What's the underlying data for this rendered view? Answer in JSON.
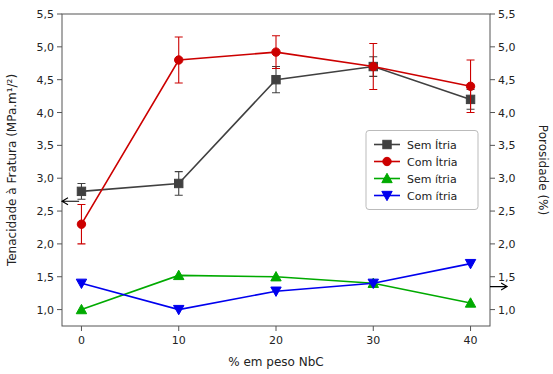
{
  "chart_data": {
    "type": "line",
    "xlabel": "% em peso NbC",
    "ylabel": "Tenacidade à Fratura (MPa.m¹/²)",
    "y2label": "Porosidade (%)",
    "x": [
      0,
      10,
      20,
      30,
      40
    ],
    "xlim": [
      -2,
      42
    ],
    "xticks": [
      0,
      10,
      20,
      30,
      40
    ],
    "ylim": [
      0.75,
      5.5
    ],
    "yticks": [
      {
        "value": 1.0,
        "label": "1,0"
      },
      {
        "value": 1.5,
        "label": "1,5"
      },
      {
        "value": 2.0,
        "label": "2,0"
      },
      {
        "value": 2.5,
        "label": "2,5"
      },
      {
        "value": 3.0,
        "label": "3,0"
      },
      {
        "value": 3.5,
        "label": "3,5"
      },
      {
        "value": 4.0,
        "label": "4,0"
      },
      {
        "value": 4.5,
        "label": "4,5"
      },
      {
        "value": 5.0,
        "label": "5,0"
      },
      {
        "value": 5.5,
        "label": "5,5"
      }
    ],
    "y2lim": [
      0.75,
      5.5
    ],
    "y2ticks": [
      {
        "value": 1.0,
        "label": "1,0"
      },
      {
        "value": 1.5,
        "label": "1,5"
      },
      {
        "value": 2.0,
        "label": "2,0"
      },
      {
        "value": 2.5,
        "label": "2,5"
      },
      {
        "value": 3.0,
        "label": "3,0"
      },
      {
        "value": 3.5,
        "label": "3,5"
      },
      {
        "value": 4.0,
        "label": "4,0"
      },
      {
        "value": 4.5,
        "label": "4,5"
      },
      {
        "value": 5.0,
        "label": "5,0"
      },
      {
        "value": 5.5,
        "label": "5,5"
      }
    ],
    "series": [
      {
        "name": "Sem Ítria",
        "color": "#404040",
        "marker": "square",
        "axis": "y",
        "values": [
          2.8,
          2.92,
          4.5,
          4.7,
          4.2
        ],
        "errors": [
          0.12,
          0.18,
          0.2,
          0.15,
          0.15
        ]
      },
      {
        "name": "Com Ítria",
        "color": "#cc0000",
        "marker": "circle",
        "axis": "y",
        "values": [
          2.3,
          4.8,
          4.92,
          4.7,
          4.4
        ],
        "errors": [
          0.3,
          0.35,
          0.25,
          0.35,
          0.4
        ]
      },
      {
        "name": "Sem ítria",
        "color": "#00aa00",
        "marker": "triangle-up",
        "axis": "y2",
        "values": [
          1.0,
          1.52,
          1.5,
          1.4,
          1.1
        ]
      },
      {
        "name": "Com ítria",
        "color": "#0000ee",
        "marker": "triangle-down",
        "axis": "y2",
        "values": [
          1.4,
          1.0,
          1.28,
          1.4,
          1.7
        ]
      }
    ],
    "arrows": [
      {
        "y": 2.65,
        "axis": "y",
        "direction": "left"
      },
      {
        "y": 1.35,
        "axis": "y2",
        "direction": "right"
      }
    ],
    "grid": false,
    "legend": "center right"
  }
}
